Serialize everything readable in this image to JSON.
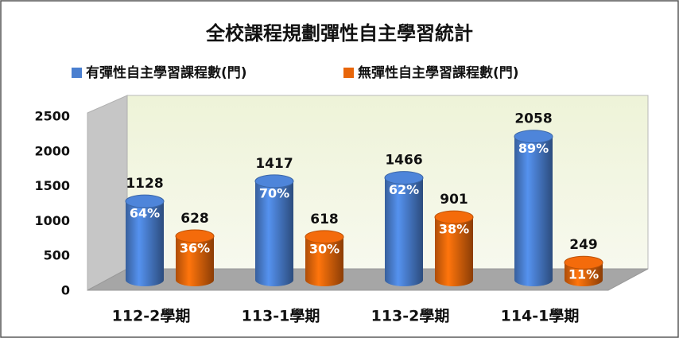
{
  "chart_data": {
    "type": "cylinder-bar",
    "title": "全校課程規劃彈性自主學習統計",
    "categories": [
      "112-2學期",
      "113-1學期",
      "113-2學期",
      "114-1學期"
    ],
    "series": [
      {
        "name": "有彈性自主學習課程數(門)",
        "color": "#4a7fd0",
        "values": [
          1128,
          1417,
          1466,
          2058
        ],
        "share_labels": [
          "64%",
          "70%",
          "62%",
          "89%"
        ]
      },
      {
        "name": "無彈性自主學習課程數(門)",
        "color": "#e8660a",
        "values": [
          628,
          618,
          901,
          249
        ],
        "share_labels": [
          "36%",
          "30%",
          "38%",
          "11%"
        ]
      }
    ],
    "ylim": [
      0,
      2500
    ],
    "yticks": [
      0,
      500,
      1000,
      1500,
      2000,
      2500
    ],
    "legend": "top"
  }
}
